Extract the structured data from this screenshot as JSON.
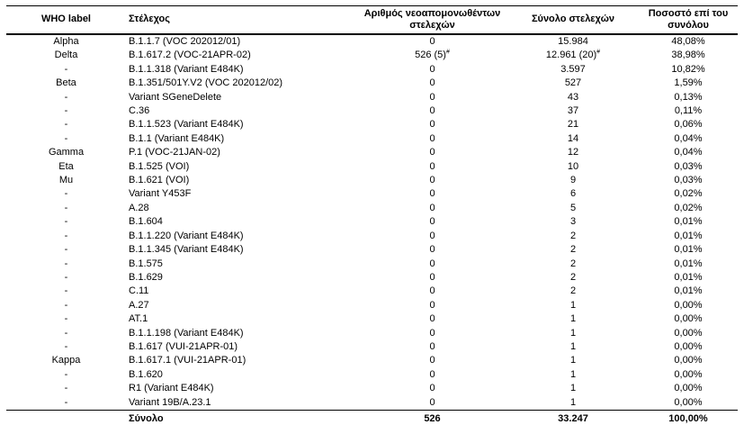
{
  "page": {
    "background_color": "#ffffff",
    "text_color": "#000000",
    "language": "el"
  },
  "table": {
    "headers": [
      "WHO label",
      "Στέλεχος",
      "Αριθμός νεοαπομονωθέντων στελεχών",
      "Σύνολο στελεχών",
      "Ποσοστό επί του συνόλου"
    ],
    "rows": [
      [
        "Alpha",
        "B.1.1.7 (VOC 202012/01)",
        "0",
        "15.984",
        "48,08%"
      ],
      [
        "Delta",
        "B.1.617.2 (VOC-21APR-02)",
        {
          "text": "526 (5)",
          "sup": "#"
        },
        {
          "text": "12.961 (20)",
          "sup": "#"
        },
        "38,98%"
      ],
      [
        "-",
        "B.1.1.318 (Variant E484K)",
        "0",
        "3.597",
        "10,82%"
      ],
      [
        "Beta",
        "B.1.351/501Y.V2 (VOC 202012/02)",
        "0",
        "527",
        "1,59%"
      ],
      [
        "-",
        "Variant SGeneDelete",
        "0",
        "43",
        "0,13%"
      ],
      [
        "-",
        "C.36",
        "0",
        "37",
        "0,11%"
      ],
      [
        "-",
        "B.1.1.523 (Variant E484K)",
        "0",
        "21",
        "0,06%"
      ],
      [
        "-",
        "B.1.1 (Variant E484K)",
        "0",
        "14",
        "0,04%"
      ],
      [
        "Gamma",
        "P.1 (VOC-21JAN-02)",
        "0",
        "12",
        "0,04%"
      ],
      [
        "Eta",
        "B.1.525 (VOI)",
        "0",
        "10",
        "0,03%"
      ],
      [
        "Mu",
        "B.1.621 (VOI)",
        "0",
        "9",
        "0,03%"
      ],
      [
        "-",
        "Variant Y453F",
        "0",
        "6",
        "0,02%"
      ],
      [
        "-",
        "A.28",
        "0",
        "5",
        "0,02%"
      ],
      [
        "-",
        "B.1.604",
        "0",
        "3",
        "0,01%"
      ],
      [
        "-",
        "B.1.1.220 (Variant E484K)",
        "0",
        "2",
        "0,01%"
      ],
      [
        "-",
        "B.1.1.345 (Variant E484K)",
        "0",
        "2",
        "0,01%"
      ],
      [
        "-",
        "B.1.575",
        "0",
        "2",
        "0,01%"
      ],
      [
        "-",
        "B.1.629",
        "0",
        "2",
        "0,01%"
      ],
      [
        "-",
        "C.11",
        "0",
        "2",
        "0,01%"
      ],
      [
        "-",
        "A.27",
        "0",
        "1",
        "0,00%"
      ],
      [
        "-",
        "AT.1",
        "0",
        "1",
        "0,00%"
      ],
      [
        "-",
        "B.1.1.198 (Variant E484K)",
        "0",
        "1",
        "0,00%"
      ],
      [
        "-",
        "B.1.617 (VUI-21APR-01)",
        "0",
        "1",
        "0,00%"
      ],
      [
        "Kappa",
        "B.1.617.1 (VUI-21APR-01)",
        "0",
        "1",
        "0,00%"
      ],
      [
        "-",
        "B.1.620",
        "0",
        "1",
        "0,00%"
      ],
      [
        "-",
        "R1 (Variant E484K)",
        "0",
        "1",
        "0,00%"
      ],
      [
        "-",
        "Variant 19B/A.23.1",
        "0",
        "1",
        "0,00%"
      ]
    ],
    "footer_row": [
      "",
      "Σύνολο",
      "526",
      "33.247",
      "100,00%"
    ]
  }
}
